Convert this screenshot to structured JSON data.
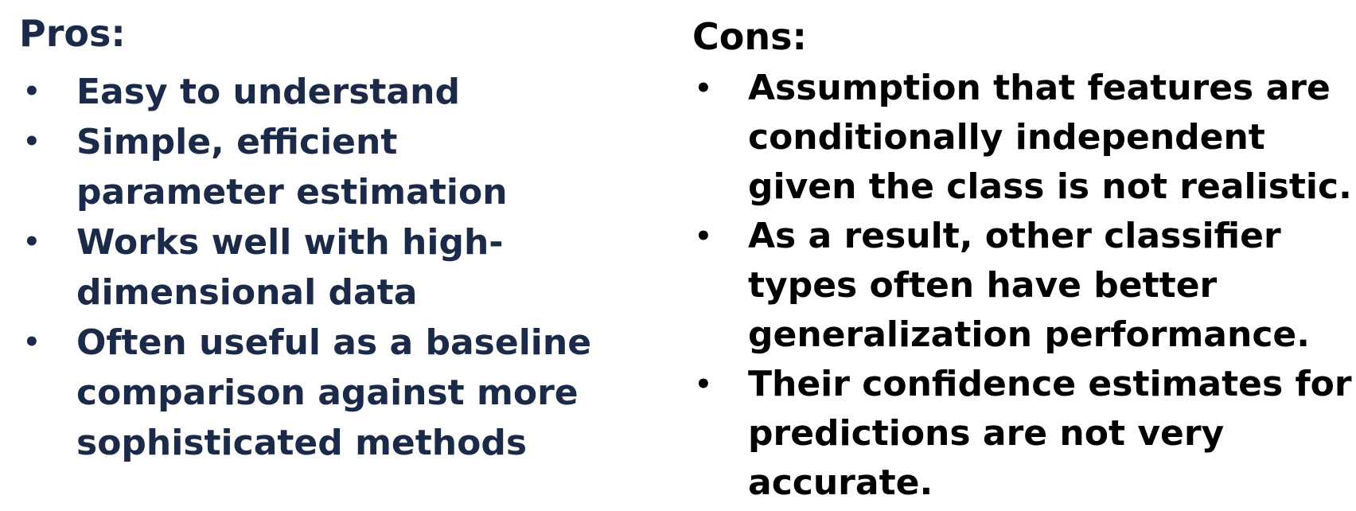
{
  "pros": {
    "heading": "Pros:",
    "bullet_glyph": "•",
    "items": [
      {
        "lines": [
          "Easy to understand"
        ]
      },
      {
        "lines": [
          "Simple, efficient",
          "parameter estimation"
        ]
      },
      {
        "lines": [
          "Works well with high-",
          "dimensional data"
        ]
      },
      {
        "lines": [
          "Often useful as a baseline",
          "comparison against more",
          "sophisticated methods"
        ]
      }
    ]
  },
  "cons": {
    "heading": "Cons:",
    "bullet_glyph": "•",
    "items": [
      {
        "lines": [
          "Assumption that features are",
          "conditionally independent",
          "given the class is not realistic."
        ]
      },
      {
        "lines": [
          "As a result, other classifier",
          "types often have better",
          "generalization performance."
        ]
      },
      {
        "lines": [
          "Their confidence estimates for",
          "predictions are not very",
          "accurate."
        ]
      }
    ]
  },
  "colors": {
    "pros_text": "#1b2a48",
    "cons_text": "#000000",
    "background": "#ffffff"
  }
}
